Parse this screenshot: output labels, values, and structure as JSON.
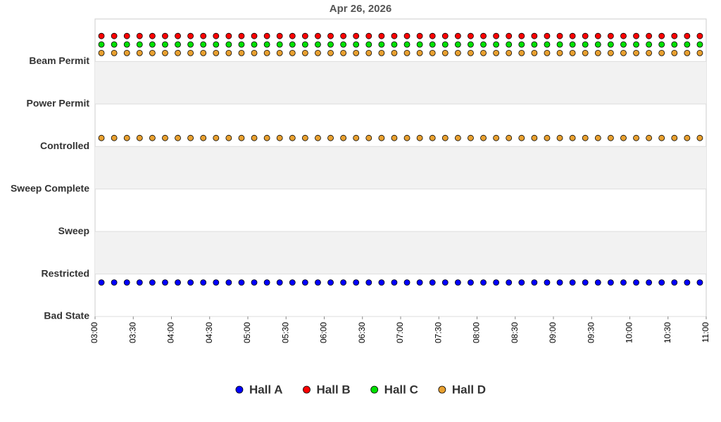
{
  "chart_data": {
    "type": "scatter",
    "title": "Apr 26, 2026",
    "x": [
      "03:05",
      "03:15",
      "03:25",
      "03:35",
      "03:45",
      "03:55",
      "04:05",
      "04:15",
      "04:25",
      "04:35",
      "04:45",
      "04:55",
      "05:05",
      "05:15",
      "05:25",
      "05:35",
      "05:45",
      "05:55",
      "06:05",
      "06:15",
      "06:25",
      "06:35",
      "06:45",
      "06:55",
      "07:05",
      "07:15",
      "07:25",
      "07:35",
      "07:45",
      "07:55",
      "08:05",
      "08:15",
      "08:25",
      "08:35",
      "08:45",
      "08:55",
      "09:05",
      "09:15",
      "09:25",
      "09:35",
      "09:45",
      "09:55",
      "10:05",
      "10:15",
      "10:25",
      "10:35",
      "10:45",
      "10:55"
    ],
    "xlim": [
      "03:00",
      "11:00"
    ],
    "xticks": [
      "03:00",
      "03:30",
      "04:00",
      "04:30",
      "05:00",
      "05:30",
      "06:00",
      "06:30",
      "07:00",
      "07:30",
      "08:00",
      "08:30",
      "09:00",
      "09:30",
      "10:00",
      "10:30",
      "11:00"
    ],
    "ylim": [
      0,
      7
    ],
    "yticks": [
      {
        "value": 0,
        "label": "Bad State"
      },
      {
        "value": 1,
        "label": "Restricted"
      },
      {
        "value": 2,
        "label": "Sweep"
      },
      {
        "value": 3,
        "label": "Sweep Complete"
      },
      {
        "value": 4,
        "label": "Controlled"
      },
      {
        "value": 5,
        "label": "Power Permit"
      },
      {
        "value": 6,
        "label": "Beam Permit"
      }
    ],
    "grid": true,
    "series": [
      {
        "name": "Hall A",
        "color": "#0000ff",
        "values": [
          0.8,
          0.8,
          0.8,
          0.8,
          0.8,
          0.8,
          0.8,
          0.8,
          0.8,
          0.8,
          0.8,
          0.8,
          0.8,
          0.8,
          0.8,
          0.8,
          0.8,
          0.8,
          0.8,
          0.8,
          0.8,
          0.8,
          0.8,
          0.8,
          0.8,
          0.8,
          0.8,
          0.8,
          0.8,
          0.8,
          0.8,
          0.8,
          0.8,
          0.8,
          0.8,
          0.8,
          0.8,
          0.8,
          0.8,
          0.8,
          0.8,
          0.8,
          0.8,
          0.8,
          0.8,
          0.8,
          0.8,
          0.8
        ]
      },
      {
        "name": "Hall B",
        "color": "#ff0000",
        "values": [
          6.6,
          6.6,
          6.6,
          6.6,
          6.6,
          6.6,
          6.6,
          6.6,
          6.6,
          6.6,
          6.6,
          6.6,
          6.6,
          6.6,
          6.6,
          6.6,
          6.6,
          6.6,
          6.6,
          6.6,
          6.6,
          6.6,
          6.6,
          6.6,
          6.6,
          6.6,
          6.6,
          6.6,
          6.6,
          6.6,
          6.6,
          6.6,
          6.6,
          6.6,
          6.6,
          6.6,
          6.6,
          6.6,
          6.6,
          6.6,
          6.6,
          6.6,
          6.6,
          6.6,
          6.6,
          6.6,
          6.6,
          6.6
        ]
      },
      {
        "name": "Hall C",
        "color": "#00e000",
        "values": [
          6.4,
          6.4,
          6.4,
          6.4,
          6.4,
          6.4,
          6.4,
          6.4,
          6.4,
          6.4,
          6.4,
          6.4,
          6.4,
          6.4,
          6.4,
          6.4,
          6.4,
          6.4,
          6.4,
          6.4,
          6.4,
          6.4,
          6.4,
          6.4,
          6.4,
          6.4,
          6.4,
          6.4,
          6.4,
          6.4,
          6.4,
          6.4,
          6.4,
          6.4,
          6.4,
          6.4,
          6.4,
          6.4,
          6.4,
          6.4,
          6.4,
          6.4,
          6.4,
          6.4,
          6.4,
          6.4,
          6.4,
          6.4
        ]
      },
      {
        "name": "Hall D",
        "color": "#e8a030",
        "x": [
          "03:05",
          "03:05",
          "03:15",
          "03:15",
          "03:25",
          "03:25",
          "03:35",
          "03:35",
          "03:45",
          "03:45",
          "03:55",
          "03:55",
          "04:05",
          "04:05",
          "04:15",
          "04:15",
          "04:25",
          "04:25",
          "04:35",
          "04:35",
          "04:45",
          "04:45",
          "04:55",
          "04:55",
          "05:05",
          "05:05",
          "05:15",
          "05:15",
          "05:25",
          "05:25",
          "05:35",
          "05:35",
          "05:45",
          "05:45",
          "05:55",
          "05:55",
          "06:05",
          "06:05",
          "06:15",
          "06:15",
          "06:25",
          "06:25",
          "06:35",
          "06:35",
          "06:45",
          "06:45",
          "06:55",
          "06:55",
          "07:05",
          "07:05",
          "07:15",
          "07:15",
          "07:25",
          "07:25",
          "07:35",
          "07:35",
          "07:45",
          "07:45",
          "07:55",
          "07:55",
          "08:05",
          "08:05",
          "08:15",
          "08:15",
          "08:25",
          "08:25",
          "08:35",
          "08:35",
          "08:45",
          "08:45",
          "08:55",
          "08:55",
          "09:05",
          "09:05",
          "09:15",
          "09:15",
          "09:25",
          "09:25",
          "09:35",
          "09:35",
          "09:45",
          "09:45",
          "09:55",
          "09:55",
          "10:05",
          "10:05",
          "10:15",
          "10:15",
          "10:25",
          "10:25",
          "10:35",
          "10:35",
          "10:45",
          "10:45",
          "10:55",
          "10:55"
        ],
        "values": [
          6.2,
          4.2,
          6.2,
          4.2,
          6.2,
          4.2,
          6.2,
          4.2,
          6.2,
          4.2,
          6.2,
          4.2,
          6.2,
          4.2,
          6.2,
          4.2,
          6.2,
          4.2,
          6.2,
          4.2,
          6.2,
          4.2,
          6.2,
          4.2,
          6.2,
          4.2,
          6.2,
          4.2,
          6.2,
          4.2,
          6.2,
          4.2,
          6.2,
          4.2,
          6.2,
          4.2,
          6.2,
          4.2,
          6.2,
          4.2,
          6.2,
          4.2,
          6.2,
          4.2,
          6.2,
          4.2,
          6.2,
          4.2,
          6.2,
          4.2,
          6.2,
          4.2,
          6.2,
          4.2,
          6.2,
          4.2,
          6.2,
          4.2,
          6.2,
          4.2,
          6.2,
          4.2,
          6.2,
          4.2,
          6.2,
          4.2,
          6.2,
          4.2,
          6.2,
          4.2,
          6.2,
          4.2,
          6.2,
          4.2,
          6.2,
          4.2,
          6.2,
          4.2,
          6.2,
          4.2,
          6.2,
          4.2,
          6.2,
          4.2,
          6.2,
          4.2,
          6.2,
          4.2,
          6.2,
          4.2,
          6.2,
          4.2,
          6.2,
          4.2,
          6.2,
          4.2
        ]
      }
    ]
  }
}
